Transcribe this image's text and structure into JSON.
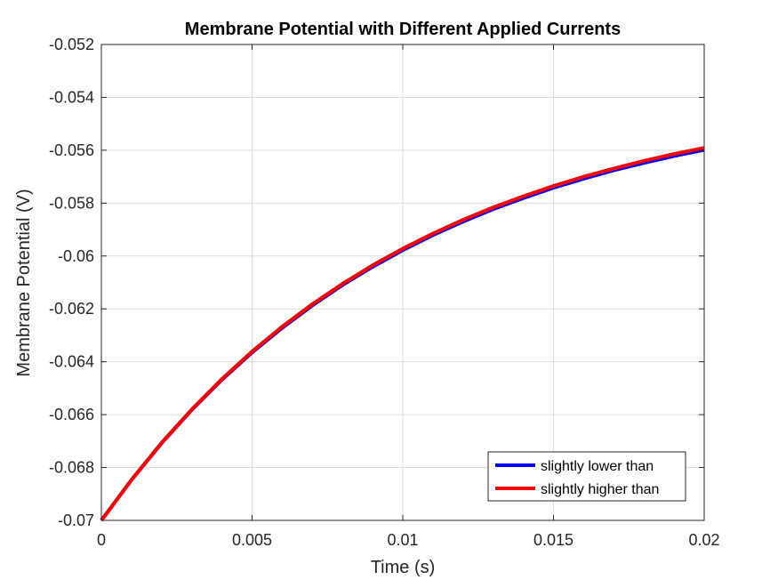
{
  "chart_data": {
    "type": "line",
    "title": "Membrane Potential with Different Applied Currents",
    "xlabel": "Time (s)",
    "ylabel": "Membrane Potential (V)",
    "xlim": [
      0,
      0.02
    ],
    "ylim": [
      -0.07,
      -0.052
    ],
    "x_ticks": [
      0,
      0.005,
      0.01,
      0.015,
      0.02
    ],
    "x_tick_labels": [
      "0",
      "0.005",
      "0.01",
      "0.015",
      "0.02"
    ],
    "y_ticks": [
      -0.07,
      -0.068,
      -0.066,
      -0.064,
      -0.062,
      -0.06,
      -0.058,
      -0.056,
      -0.054,
      -0.052
    ],
    "y_tick_labels": [
      "-0.07",
      "-0.068",
      "-0.066",
      "-0.064",
      "-0.062",
      "-0.06",
      "-0.058",
      "-0.056",
      "-0.054",
      "-0.052"
    ],
    "grid": true,
    "legend_position": "bottom-right",
    "x": [
      0,
      0.001,
      0.002,
      0.003,
      0.004,
      0.005,
      0.006,
      0.007,
      0.008,
      0.009,
      0.01,
      0.011,
      0.012,
      0.013,
      0.014,
      0.015,
      0.016,
      0.017,
      0.018,
      0.019,
      0.02
    ],
    "series": [
      {
        "name": "slightly lower than",
        "color": "#0000ff",
        "values": [
          -0.07,
          -0.06847,
          -0.06708,
          -0.06582,
          -0.06468,
          -0.06365,
          -0.06272,
          -0.06187,
          -0.0611,
          -0.06041,
          -0.05978,
          -0.05921,
          -0.0587,
          -0.05823,
          -0.05781,
          -0.05742,
          -0.05708,
          -0.05676,
          -0.05648,
          -0.05622,
          -0.05599
        ]
      },
      {
        "name": "slightly higher than",
        "color": "#ff0000",
        "values": [
          -0.07,
          -0.06846,
          -0.06706,
          -0.0658,
          -0.06465,
          -0.06361,
          -0.06267,
          -0.06182,
          -0.06105,
          -0.06035,
          -0.05972,
          -0.05915,
          -0.05863,
          -0.05816,
          -0.05774,
          -0.05735,
          -0.057,
          -0.05669,
          -0.0564,
          -0.05614,
          -0.05591
        ]
      }
    ]
  }
}
